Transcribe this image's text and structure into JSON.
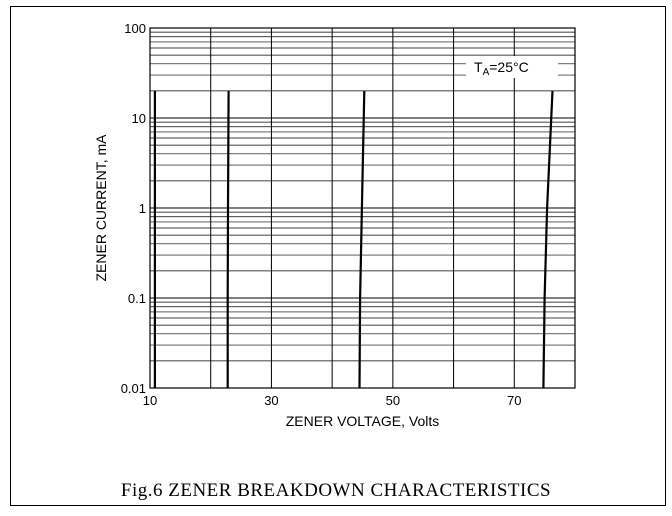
{
  "caption": "Fig.6 ZENER BREAKDOWN CHARACTERISTICS",
  "chart_data": {
    "type": "line",
    "title": "",
    "xlabel": "ZENER VOLTAGE, Volts",
    "ylabel": "ZENER CURRENT, mA",
    "xlim": [
      10,
      80
    ],
    "ylim": [
      0.01,
      100
    ],
    "y_scale": "log",
    "x_tick_labels": [
      "10",
      "30",
      "50",
      "70"
    ],
    "x_ticks": [
      10,
      30,
      50,
      70
    ],
    "y_tick_labels": [
      "0.01",
      "0.1",
      "1",
      "10",
      "100"
    ],
    "y_ticks": [
      0.01,
      0.1,
      1,
      10,
      100
    ],
    "grid": true,
    "annotation": {
      "text_main": "T",
      "text_sub": "A",
      "text_rest": "=25°C"
    },
    "series": [
      {
        "x": [
          10.8,
          10.8,
          10.8,
          10.8
        ],
        "y": [
          0.01,
          0.1,
          1,
          20
        ]
      },
      {
        "x": [
          22.8,
          22.8,
          22.85,
          22.95
        ],
        "y": [
          0.01,
          0.1,
          1,
          20
        ]
      },
      {
        "x": [
          44.5,
          44.6,
          44.9,
          45.3
        ],
        "y": [
          0.01,
          0.1,
          1,
          20
        ]
      },
      {
        "x": [
          74.8,
          75.0,
          75.4,
          76.3
        ],
        "y": [
          0.01,
          0.1,
          1,
          20
        ]
      }
    ],
    "line_color": "#000000"
  }
}
